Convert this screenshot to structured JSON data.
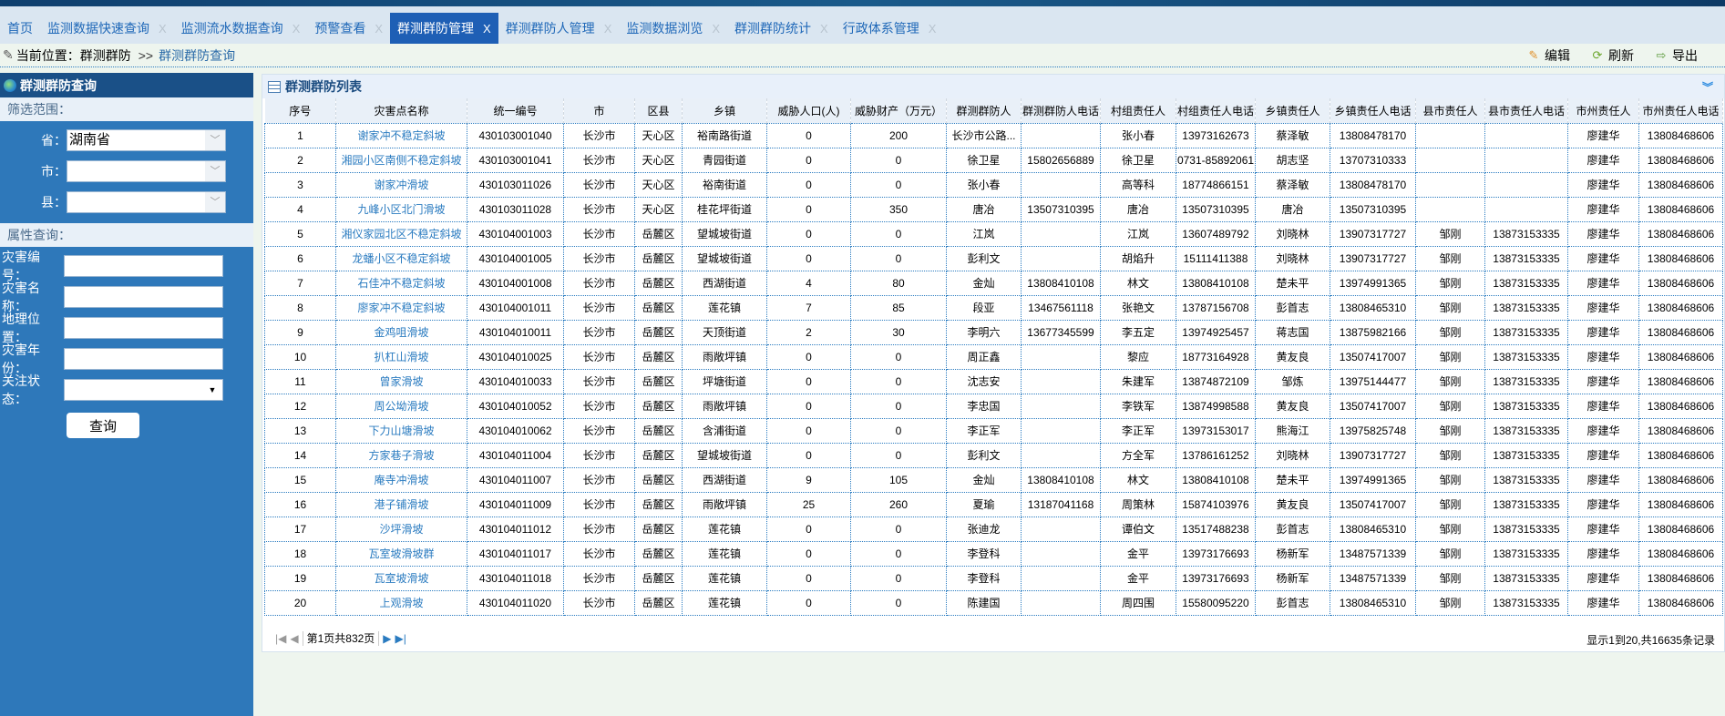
{
  "tabs": [
    {
      "label": "首页",
      "closable": false
    },
    {
      "label": "监测数据快速查询",
      "closable": true
    },
    {
      "label": "监测流水数据查询",
      "closable": true
    },
    {
      "label": "预警查看",
      "closable": true
    },
    {
      "label": "群测群防管理",
      "closable": true,
      "active": true
    },
    {
      "label": "群测群防人管理",
      "closable": true
    },
    {
      "label": "监测数据浏览",
      "closable": true
    },
    {
      "label": "群测群防统计",
      "closable": true
    },
    {
      "label": "行政体系管理",
      "closable": true
    }
  ],
  "close_glyph": "X",
  "breadcrumb": {
    "prefix": "当前位置：群测群防",
    "sep": ">>",
    "current": "群测群防查询"
  },
  "toolbar": {
    "edit": "编辑",
    "refresh": "刷新",
    "export": "导出"
  },
  "sidebar": {
    "title": "群测群防查询",
    "scope_label": "筛选范围：",
    "province_label": "省：",
    "province_value": "湖南省",
    "city_label": "市：",
    "city_value": "",
    "county_label": "县：",
    "county_value": "",
    "attr_label": "属性查询：",
    "code_label": "灾害编号：",
    "name_label": "灾害名称：",
    "location_label": "地理位置：",
    "year_label": "灾害年份：",
    "status_label": "关注状态：",
    "query_button": "查询"
  },
  "main": {
    "title": "群测群防列表",
    "columns": [
      "序号",
      "灾害点名称",
      "统一编号",
      "市",
      "区县",
      "乡镇",
      "威胁人口(人)",
      "威胁财产（万元）",
      "群测群防人",
      "群测群防人电话",
      "村组责任人",
      "村组责任人电话",
      "乡镇责任人",
      "乡镇责任人电话",
      "县市责任人",
      "县市责任人电话",
      "市州责任人",
      "市州责任人电话"
    ],
    "rows": [
      [
        "1",
        "谢家冲不稳定斜坡",
        "430103001040",
        "长沙市",
        "天心区",
        "裕南路街道",
        "0",
        "200",
        "长沙市公路...",
        "",
        "张小春",
        "13973162673",
        "蔡泽敏",
        "13808478170",
        "",
        "",
        "廖建华",
        "13808468606"
      ],
      [
        "2",
        "湘园小区南侧不稳定斜坡",
        "430103001041",
        "长沙市",
        "天心区",
        "青园街道",
        "0",
        "0",
        "徐卫星",
        "15802656889",
        "徐卫星",
        "0731-85892061",
        "胡志坚",
        "13707310333",
        "",
        "",
        "廖建华",
        "13808468606"
      ],
      [
        "3",
        "谢家冲滑坡",
        "430103011026",
        "长沙市",
        "天心区",
        "裕南街道",
        "0",
        "0",
        "张小春",
        "",
        "高等科",
        "18774866151",
        "蔡泽敏",
        "13808478170",
        "",
        "",
        "廖建华",
        "13808468606"
      ],
      [
        "4",
        "九峰小区北门滑坡",
        "430103011028",
        "长沙市",
        "天心区",
        "桂花坪街道",
        "0",
        "350",
        "唐冶",
        "13507310395",
        "唐冶",
        "13507310395",
        "唐冶",
        "13507310395",
        "",
        "",
        "廖建华",
        "13808468606"
      ],
      [
        "5",
        "湘仪家园北区不稳定斜坡",
        "430104001003",
        "长沙市",
        "岳麓区",
        "望城坡街道",
        "0",
        "0",
        "江岚",
        "",
        "江岚",
        "13607489792",
        "刘晓林",
        "13907317727",
        "邹刚",
        "13873153335",
        "廖建华",
        "13808468606"
      ],
      [
        "6",
        "龙蟠小区不稳定斜坡",
        "430104001005",
        "长沙市",
        "岳麓区",
        "望城坡街道",
        "0",
        "0",
        "彭利文",
        "",
        "胡焰升",
        "15111411388",
        "刘晓林",
        "13907317727",
        "邹刚",
        "13873153335",
        "廖建华",
        "13808468606"
      ],
      [
        "7",
        "石佳冲不稳定斜坡",
        "430104001008",
        "长沙市",
        "岳麓区",
        "西湖街道",
        "4",
        "80",
        "金灿",
        "13808410108",
        "林文",
        "13808410108",
        "楚未平",
        "13974991365",
        "邹刚",
        "13873153335",
        "廖建华",
        "13808468606"
      ],
      [
        "8",
        "廖家冲不稳定斜坡",
        "430104001011",
        "长沙市",
        "岳麓区",
        "莲花镇",
        "7",
        "85",
        "段亚",
        "13467561118",
        "张艳文",
        "13787156708",
        "彭首志",
        "13808465310",
        "邹刚",
        "13873153335",
        "廖建华",
        "13808468606"
      ],
      [
        "9",
        "金鸡咀滑坡",
        "430104010011",
        "长沙市",
        "岳麓区",
        "天顶街道",
        "2",
        "30",
        "李明六",
        "13677345599",
        "李五定",
        "13974925457",
        "蒋志国",
        "13875982166",
        "邹刚",
        "13873153335",
        "廖建华",
        "13808468606"
      ],
      [
        "10",
        "扒杠山滑坡",
        "430104010025",
        "长沙市",
        "岳麓区",
        "雨敞坪镇",
        "0",
        "0",
        "周正鑫",
        "",
        "黎应",
        "18773164928",
        "黄友良",
        "13507417007",
        "邹刚",
        "13873153335",
        "廖建华",
        "13808468606"
      ],
      [
        "11",
        "曾家滑坡",
        "430104010033",
        "长沙市",
        "岳麓区",
        "坪塘街道",
        "0",
        "0",
        "沈志安",
        "",
        "朱建军",
        "13874872109",
        "邹炼",
        "13975144477",
        "邹刚",
        "13873153335",
        "廖建华",
        "13808468606"
      ],
      [
        "12",
        "周公坳滑坡",
        "430104010052",
        "长沙市",
        "岳麓区",
        "雨敞坪镇",
        "0",
        "0",
        "李忠国",
        "",
        "李铁军",
        "13874998588",
        "黄友良",
        "13507417007",
        "邹刚",
        "13873153335",
        "廖建华",
        "13808468606"
      ],
      [
        "13",
        "下力山塘滑坡",
        "430104010062",
        "长沙市",
        "岳麓区",
        "含浦街道",
        "0",
        "0",
        "李正军",
        "",
        "李正军",
        "13973153017",
        "熊海江",
        "13975825748",
        "邹刚",
        "13873153335",
        "廖建华",
        "13808468606"
      ],
      [
        "14",
        "方家巷子滑坡",
        "430104011004",
        "长沙市",
        "岳麓区",
        "望城坡街道",
        "0",
        "0",
        "彭利文",
        "",
        "方全军",
        "13786161252",
        "刘晓林",
        "13907317727",
        "邹刚",
        "13873153335",
        "廖建华",
        "13808468606"
      ],
      [
        "15",
        "庵寺冲滑坡",
        "430104011007",
        "长沙市",
        "岳麓区",
        "西湖街道",
        "9",
        "105",
        "金灿",
        "13808410108",
        "林文",
        "13808410108",
        "楚未平",
        "13974991365",
        "邹刚",
        "13873153335",
        "廖建华",
        "13808468606"
      ],
      [
        "16",
        "港子铺滑坡",
        "430104011009",
        "长沙市",
        "岳麓区",
        "雨敞坪镇",
        "25",
        "260",
        "夏瑜",
        "13187041168",
        "周策林",
        "15874103976",
        "黄友良",
        "13507417007",
        "邹刚",
        "13873153335",
        "廖建华",
        "13808468606"
      ],
      [
        "17",
        "沙坪滑坡",
        "430104011012",
        "长沙市",
        "岳麓区",
        "莲花镇",
        "0",
        "0",
        "张迪龙",
        "",
        "谭伯文",
        "13517488238",
        "彭首志",
        "13808465310",
        "邹刚",
        "13873153335",
        "廖建华",
        "13808468606"
      ],
      [
        "18",
        "瓦室坡滑坡群",
        "430104011017",
        "长沙市",
        "岳麓区",
        "莲花镇",
        "0",
        "0",
        "李登科",
        "",
        "金平",
        "13973176693",
        "杨新军",
        "13487571339",
        "邹刚",
        "13873153335",
        "廖建华",
        "13808468606"
      ],
      [
        "19",
        "瓦室坡滑坡",
        "430104011018",
        "长沙市",
        "岳麓区",
        "莲花镇",
        "0",
        "0",
        "李登科",
        "",
        "金平",
        "13973176693",
        "杨新军",
        "13487571339",
        "邹刚",
        "13873153335",
        "廖建华",
        "13808468606"
      ],
      [
        "20",
        "上观滑坡",
        "430104011020",
        "长沙市",
        "岳麓区",
        "莲花镇",
        "0",
        "0",
        "陈建国",
        "",
        "周四围",
        "15580095220",
        "彭首志",
        "13808465310",
        "邹刚",
        "13873153335",
        "廖建华",
        "13808468606"
      ]
    ],
    "pager": {
      "page_text": "第1页共832页",
      "summary": "显示1到20,共16635条记录"
    }
  },
  "colors": {
    "accent": "#1e5fb5",
    "sidebar": "#2e78ba",
    "link": "#2a7bc0"
  }
}
